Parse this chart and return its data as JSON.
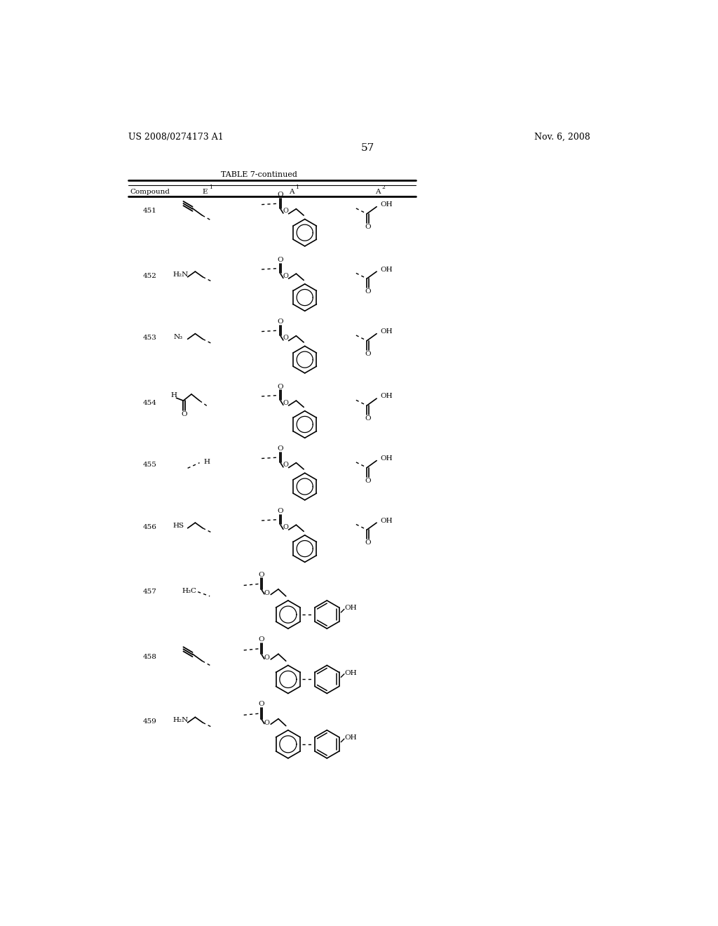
{
  "page_number": "57",
  "patent_number": "US 2008/0274173 A1",
  "patent_date": "Nov. 6, 2008",
  "table_title": "TABLE 7-continued",
  "background_color": "#ffffff"
}
